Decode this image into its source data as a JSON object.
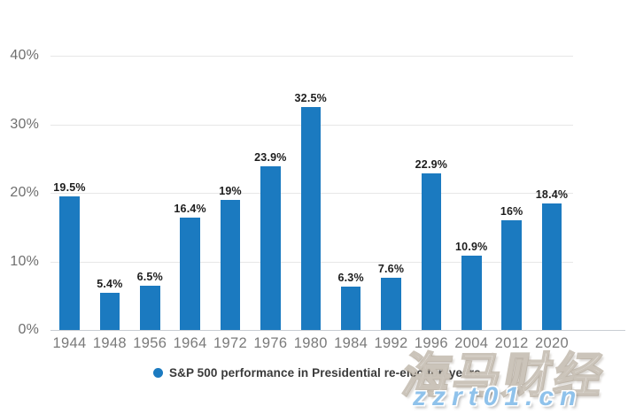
{
  "chart_data": {
    "type": "bar",
    "title": "",
    "xlabel": "",
    "ylabel": "",
    "categories": [
      "1944",
      "1948",
      "1956",
      "1964",
      "1972",
      "1976",
      "1980",
      "1984",
      "1992",
      "1996",
      "2004",
      "2012",
      "2020"
    ],
    "values": [
      19.5,
      5.4,
      6.5,
      16.4,
      19,
      23.9,
      32.5,
      6.3,
      7.6,
      22.9,
      10.9,
      16,
      18.4
    ],
    "value_labels": [
      "19.5%",
      "5.4%",
      "6.5%",
      "16.4%",
      "19%",
      "23.9%",
      "32.5%",
      "6.3%",
      "7.6%",
      "22.9%",
      "10.9%",
      "16%",
      "18.4%"
    ],
    "ylim": [
      0,
      40
    ],
    "yticks": [
      {
        "value": 0,
        "label": "0%"
      },
      {
        "value": 10,
        "label": "10%"
      },
      {
        "value": 20,
        "label": "20%"
      },
      {
        "value": 30,
        "label": "30%"
      },
      {
        "value": 40,
        "label": "40%"
      }
    ],
    "grid": true,
    "legend": "S&P 500 performance in Presidential re-election years",
    "legend_position": "bottom",
    "bar_color": "#1b7ac0"
  },
  "watermark": {
    "brand": "海马财经",
    "site": "zzrt01.cn",
    "site_color": "#8fc2eb"
  },
  "colors": {
    "background": "#ffffff",
    "bar": "#1b7ac0",
    "gridline": "#e7e7e7",
    "axis_line": "#c9ced3",
    "y_tick_label": "#6f6f6f",
    "x_tick_label": "#7a7a7a",
    "value_label": "#1d1d1d",
    "legend_text": "#3a3a3a"
  }
}
